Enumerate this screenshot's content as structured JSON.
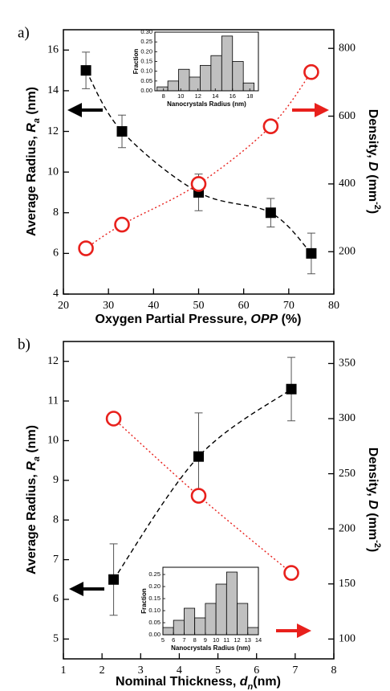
{
  "chart_data": [
    {
      "type": "scatter",
      "panel_label": "a)",
      "x_label": [
        "Oxygen Partial Pressure, ",
        "OPP",
        " (%)"
      ],
      "y_label": [
        "Average Radius, ",
        "R",
        "a",
        " (nm)"
      ],
      "y2_label": [
        "Density, ",
        "D",
        " (mm",
        "-2",
        ")"
      ],
      "x": [
        25,
        33,
        50,
        66,
        75
      ],
      "xlim": [
        20,
        80
      ],
      "xticks": [
        20,
        30,
        40,
        50,
        60,
        70,
        80
      ],
      "ylim": [
        4,
        17
      ],
      "yticks": [
        4,
        6,
        8,
        10,
        12,
        14,
        16
      ],
      "y2lim": [
        75,
        855
      ],
      "y2ticks": [
        200,
        400,
        600,
        800
      ],
      "series": [
        {
          "color": "#000000",
          "marker": "square",
          "line": "dashed",
          "values": [
            15,
            12,
            9,
            8,
            6
          ],
          "errors": [
            0.9,
            0.8,
            0.9,
            0.7,
            1.0
          ]
        },
        {
          "color": "#e8201c",
          "marker": "circle",
          "line": "dotted",
          "axis": "y2",
          "values": [
            210,
            280,
            400,
            570,
            730
          ]
        }
      ],
      "inset": {
        "type": "histogram",
        "x_label": "Nanocrystals Radius (nm)",
        "y_label": "Fraction",
        "bins": [
          7.25,
          8.5,
          9.75,
          11,
          12.25,
          13.5,
          14.75,
          16,
          17.25,
          18.5
        ],
        "values": [
          0.02,
          0.05,
          0.11,
          0.07,
          0.13,
          0.18,
          0.28,
          0.15,
          0.04
        ],
        "color": "#c0c0c0",
        "xlim": [
          7,
          19
        ],
        "xticks": [
          8,
          10,
          12,
          14,
          16,
          18
        ],
        "ylim": [
          0,
          0.3
        ],
        "yticks": [
          {
            "value": 0,
            "label": "0.00"
          },
          0.05,
          {
            "value": 0.1,
            "label": "0.10"
          },
          0.15,
          {
            "value": 0.2,
            "label": "0.20"
          },
          0.25,
          {
            "value": 0.3,
            "label": "0.30"
          }
        ]
      }
    },
    {
      "type": "scatter",
      "panel_label": "b)",
      "x_label": [
        "Nominal Thickness, ",
        "d",
        "n",
        "(nm)"
      ],
      "y_label": [
        "Average Radius, ",
        "R",
        "a",
        " (nm)"
      ],
      "y2_label": [
        "Density, ",
        "D",
        " (mm",
        "-2",
        ")"
      ],
      "x": [
        2.3,
        4.5,
        6.9
      ],
      "xlim": [
        1,
        8
      ],
      "xticks": [
        1,
        2,
        3,
        4,
        5,
        6,
        7,
        8
      ],
      "ylim": [
        4.5,
        12.5
      ],
      "yticks": [
        5,
        6,
        7,
        8,
        9,
        10,
        11,
        12
      ],
      "y2lim": [
        82,
        370
      ],
      "y2ticks": [
        100,
        150,
        200,
        250,
        300,
        350
      ],
      "series": [
        {
          "color": "#000000",
          "marker": "square",
          "line": "dashed",
          "values": [
            6.5,
            9.6,
            11.3
          ],
          "errors": [
            0.9,
            1.1,
            0.8
          ]
        },
        {
          "color": "#e8201c",
          "marker": "circle",
          "line": "dotted",
          "axis": "y2",
          "values": [
            300,
            230,
            160
          ]
        }
      ],
      "inset": {
        "type": "histogram",
        "x_label": "Nanocrystals Radius (nm)",
        "y_label": "Fraction",
        "bins": [
          5,
          6,
          7,
          8,
          9,
          10,
          11,
          12,
          13,
          14
        ],
        "values": [
          0.03,
          0.06,
          0.11,
          0.07,
          0.13,
          0.21,
          0.26,
          0.13,
          0.03
        ],
        "color": "#c0c0c0",
        "xlim": [
          5,
          14
        ],
        "xticks": [
          5,
          6,
          7,
          8,
          9,
          10,
          11,
          12,
          13,
          14
        ],
        "ylim": [
          0,
          0.28
        ],
        "yticks": [
          {
            "value": 0,
            "label": "0.00"
          },
          0.05,
          {
            "value": 0.1,
            "label": "0.10"
          },
          0.15,
          {
            "value": 0.2,
            "label": "0.20"
          },
          0.25
        ]
      }
    }
  ]
}
